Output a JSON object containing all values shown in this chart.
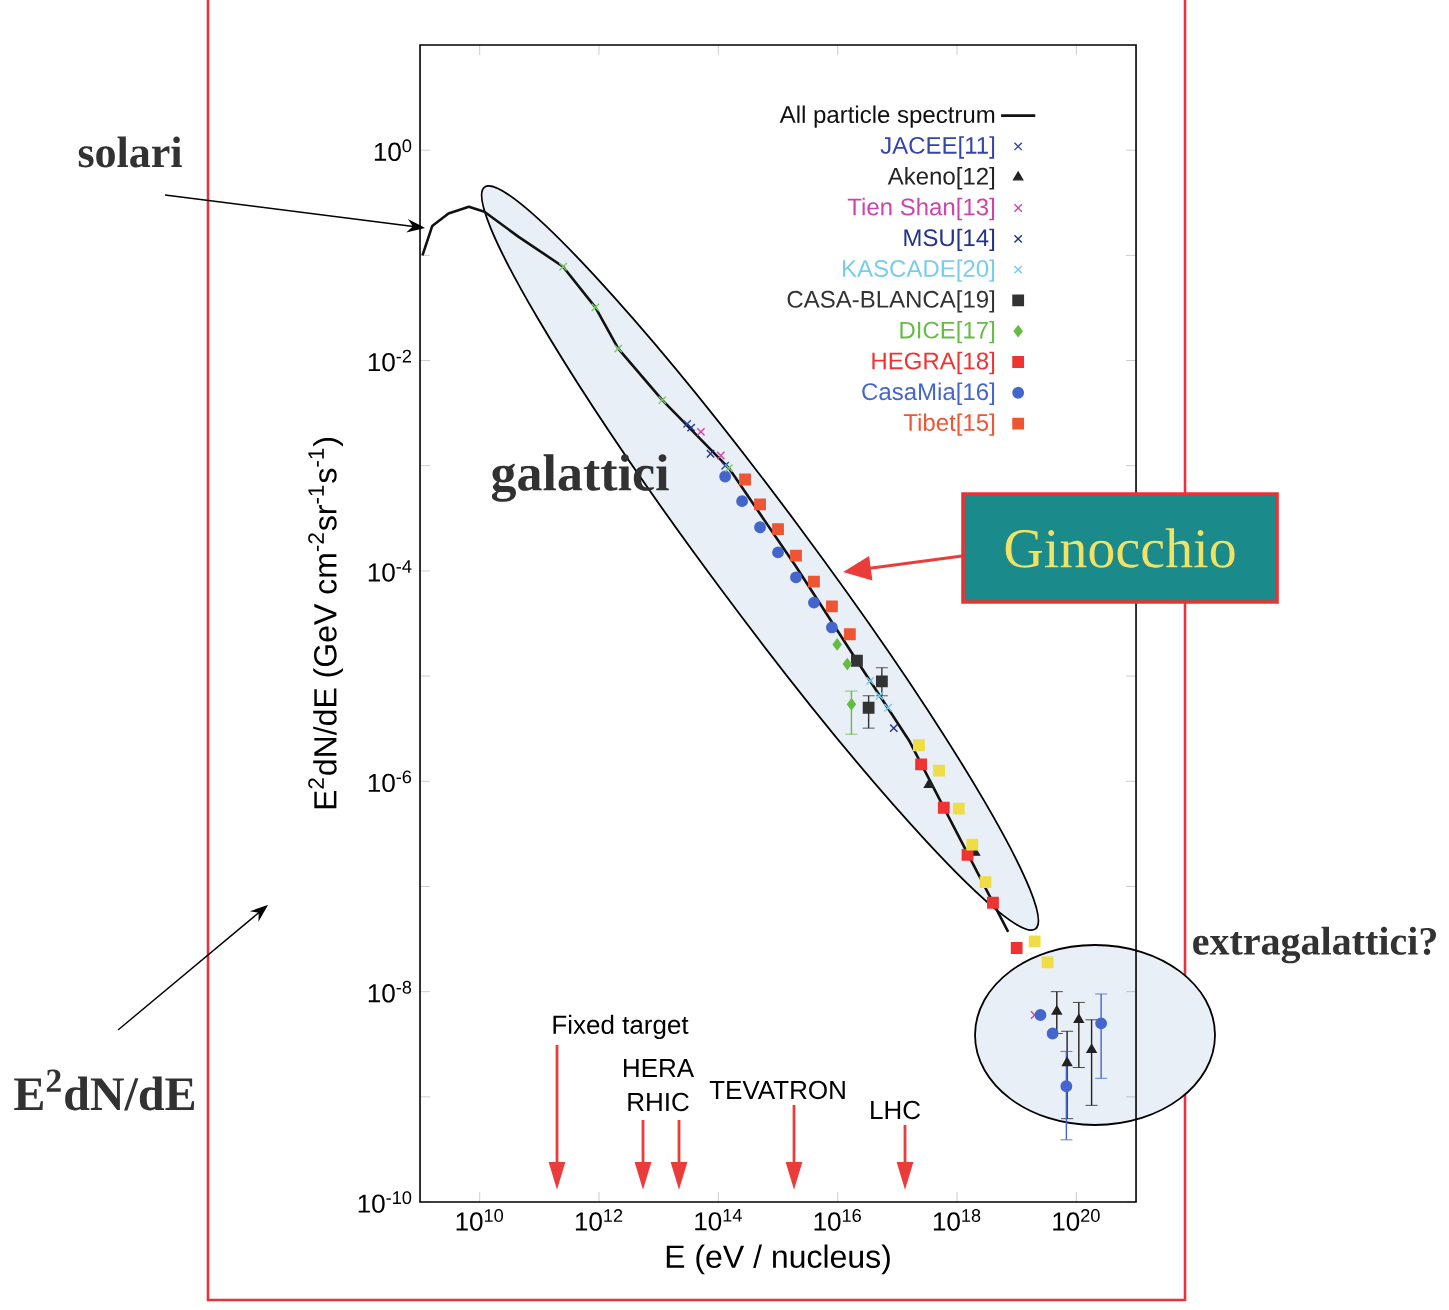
{
  "chart_data": {
    "type": "scatter",
    "log": "xy",
    "xlabel": "E     (eV / nucleus)",
    "ylabel": "E$^{2}$dN/dE     (GeV cm$^{-2}$sr$^{-1}$s$^{-1}$)",
    "xlim": [
      1000000000.0,
      1e+21
    ],
    "ylim": [
      1e-10,
      10
    ],
    "xticks": [
      {
        "value": 10000000000.0,
        "label": "10$^{10}$"
      },
      {
        "value": 1000000000000.0,
        "label": "10$^{12}$"
      },
      {
        "value": 100000000000000.0,
        "label": "10$^{14}$"
      },
      {
        "value": 1e+16,
        "label": "10$^{16}$"
      },
      {
        "value": 1e+18,
        "label": "10$^{18}$"
      },
      {
        "value": 1e+20,
        "label": "10$^{20}$"
      }
    ],
    "yticks": [
      {
        "value": 1e-10,
        "label": "10$^{-10}$"
      },
      {
        "value": 1e-09,
        "label": null
      },
      {
        "value": 1e-08,
        "label": "10$^{-8}$"
      },
      {
        "value": 1e-07,
        "label": null
      },
      {
        "value": 1e-06,
        "label": "10$^{-6}$"
      },
      {
        "value": 1e-05,
        "label": null
      },
      {
        "value": 0.0001,
        "label": "10$^{-4}$"
      },
      {
        "value": 0.001,
        "label": null
      },
      {
        "value": 0.01,
        "label": "10$^{-2}$"
      },
      {
        "value": 0.1,
        "label": null
      },
      {
        "value": 1,
        "label": "10$^{0}$"
      }
    ],
    "legend": "top right",
    "series": [
      {
        "name": "All particle spectrum",
        "type": "line",
        "marker": "none",
        "color": "#111111",
        "x": [
          1100000000.0,
          1600000000.0,
          3000000000.0,
          6600000000.0,
          12000000000.0,
          45000000000.0,
          250000000000.0,
          870000000000.0,
          2100000000000.0,
          11500000000000.0,
          150000000000000.0,
          2000000000000000.0,
          2.1e+16,
          1.6e+17,
          7.2e+18
        ],
        "values": [
          0.1,
          0.19,
          0.25,
          0.29,
          0.26,
          0.15,
          0.078,
          0.032,
          0.013,
          0.0042,
          0.00095,
          0.00011,
          1.4e-05,
          2.4e-06,
          3.7e-08
        ]
      },
      {
        "name": "JACEE[11]",
        "marker": "cross",
        "color": "#3344aa",
        "x": [
          30000000000000.0,
          130000000000000.0
        ],
        "values": [
          0.0025,
          0.001
        ]
      },
      {
        "name": "Akeno[12]",
        "marker": "triangle",
        "color": "#222222",
        "x": [
          3.4e+17,
          2e+18,
          4.7e+19,
          7e+19,
          1.1e+20,
          1.8e+20
        ],
        "values": [
          9.3e-07,
          2.1e-07,
          6.5e-09,
          2.1e-09,
          5.4e-09,
          2.8e-09
        ],
        "errors": [
          null,
          null,
          [
            4e-09,
            1e-08
          ],
          [
            6.2e-10,
            4.2e-09
          ],
          [
            1.9e-09,
            7.9e-09
          ],
          [
            8.3e-10,
            5.4e-09
          ]
        ]
      },
      {
        "name": "Tien Shan[13]",
        "marker": "cross",
        "color": "#cc44aa",
        "x": [
          51000000000000.0,
          110000000000000.0,
          2e+19
        ],
        "values": [
          0.0021,
          0.00125,
          6e-09
        ]
      },
      {
        "name": "MSU[14]",
        "marker": "cross",
        "color": "#223388",
        "x": [
          35000000000000.0,
          74000000000000.0,
          8.7e+16
        ],
        "values": [
          0.0023,
          0.0013,
          3.2e-06
        ]
      },
      {
        "name": "KASCADE[20]",
        "marker": "cross",
        "color": "#77ccee",
        "x": [
          3.5e+16,
          5e+16,
          7e+16
        ],
        "values": [
          9e-06,
          6.5e-06,
          5e-06
        ]
      },
      {
        "name": "CASA-BLANCA[19]",
        "marker": "square",
        "color": "#333333",
        "x": [
          2.1e+16,
          3.3e+16,
          5.5e+16
        ],
        "values": [
          1.4e-05,
          5e-06,
          8.9e-06
        ],
        "errors": [
          null,
          [
            3.2e-06,
            6.5e-06
          ],
          [
            6.5e-06,
            1.2e-05
          ]
        ]
      },
      {
        "name": "DICE[17]",
        "marker": "diamond",
        "color": "#66bb44",
        "x": [
          9800000000000000.0,
          1.45e+16,
          1.7e+16
        ],
        "values": [
          2e-05,
          1.3e-05,
          5.4e-06
        ],
        "errors": [
          null,
          null,
          [
            2.8e-06,
            7.2e-06
          ]
        ]
      },
      {
        "name": "HEGRA[18]",
        "marker": "square",
        "color": "#ee3333",
        "x": [
          2.5e+17,
          6e+17,
          1.5e+18,
          4e+18,
          1e+19
        ],
        "values": [
          1.45e-06,
          5.6e-07,
          2e-07,
          7e-08,
          2.6e-08
        ]
      },
      {
        "name": "CasaMia[16]",
        "marker": "circle",
        "color": "#4466cc",
        "x": [
          130000000000000.0,
          250000000000000.0,
          500000000000000.0,
          1000000000000000.0,
          2000000000000000.0,
          4000000000000000.0,
          8000000000000000.0,
          2.5e+19,
          4e+19,
          6.8e+19,
          2.6e+20
        ],
        "values": [
          0.00079,
          0.00046,
          0.00026,
          0.00015,
          8.7e-05,
          5e-05,
          2.9e-05,
          6e-09,
          4e-09,
          1.26e-09,
          5e-09
        ],
        "errors": [
          null,
          null,
          null,
          null,
          null,
          null,
          null,
          null,
          null,
          [
            3.9e-10,
            2.7e-09
          ],
          [
            1.5e-09,
            9.5e-09
          ]
        ]
      },
      {
        "name": "Tibet[15]",
        "marker": "square",
        "color": "#ee5533",
        "x": [
          280000000000000.0,
          500000000000000.0,
          1000000000000000.0,
          2000000000000000.0,
          4000000000000000.0,
          8000000000000000.0,
          1.6e+16
        ],
        "values": [
          0.00074,
          0.00043,
          0.00025,
          0.00014,
          7.9e-05,
          4.6e-05,
          2.5e-05
        ]
      },
      {
        "marker": "cross",
        "color": "#77cc66",
        "x": [
          250000000000.0,
          870000000000.0,
          2100000000000.0,
          11500000000000.0,
          150000000000000.0
        ],
        "values": [
          0.078,
          0.032,
          0.013,
          0.0042,
          0.00095
        ]
      },
      {
        "marker": "square",
        "color": "#eedd44",
        "x": [
          2.3e+17,
          5e+17,
          1.07e+18,
          1.8e+18,
          3e+18,
          2e+19,
          3.3e+19
        ],
        "values": [
          2.2e-06,
          1.26e-06,
          5.5e-07,
          2.5e-07,
          1.1e-07,
          3e-08,
          1.9e-08
        ]
      }
    ],
    "annotations": [
      "solari",
      "galattici",
      "Ginocchio",
      "extragalattici?",
      "E$^{2}$dN/dE",
      "Fixed target",
      "HERA",
      "RHIC",
      "TEVATRON",
      "LHC"
    ]
  }
}
